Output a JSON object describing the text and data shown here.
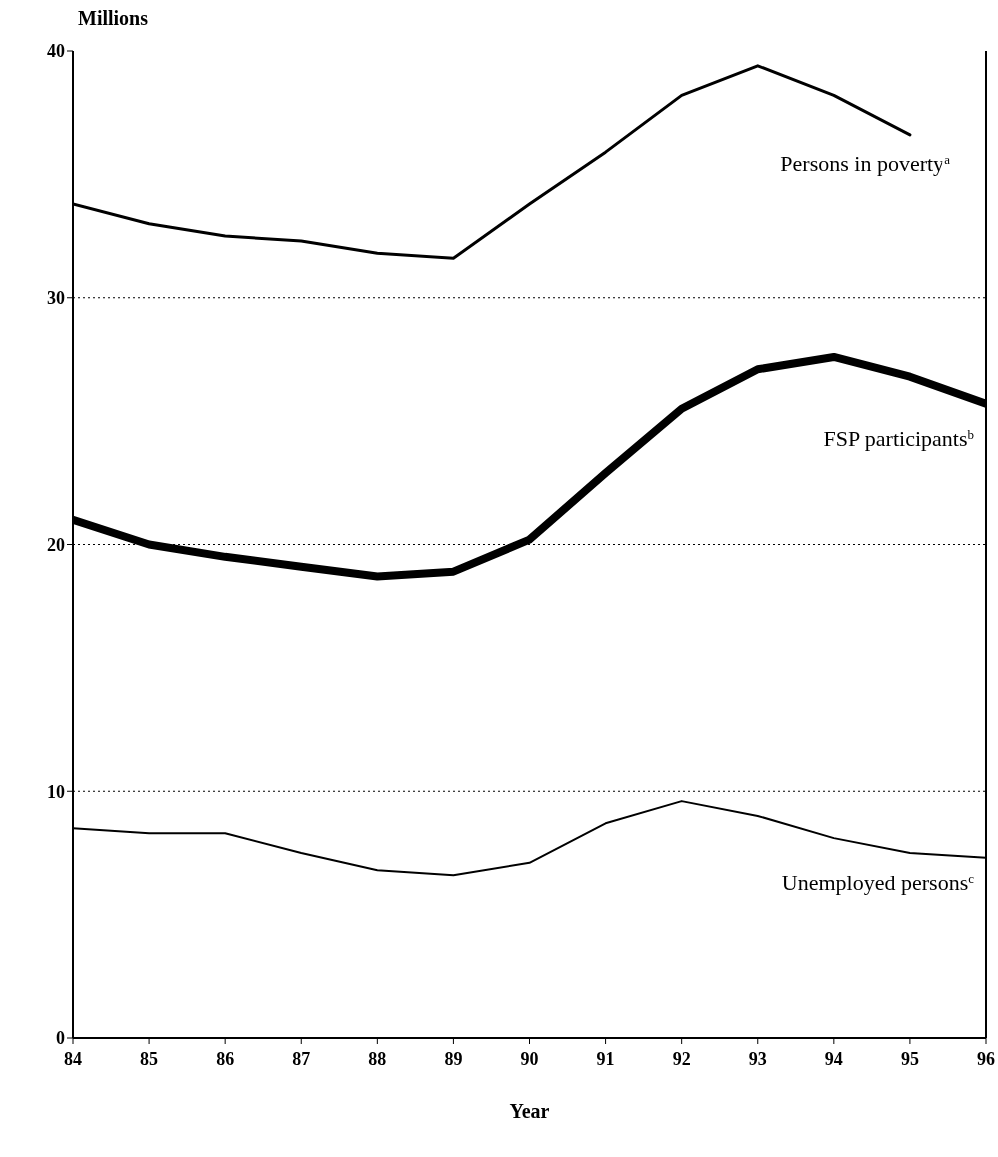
{
  "chart_data": {
    "type": "line",
    "ylabel": "Millions",
    "xlabel": "Year",
    "x": [
      84,
      85,
      86,
      87,
      88,
      89,
      90,
      91,
      92,
      93,
      94,
      95,
      96
    ],
    "xlim": [
      84,
      96
    ],
    "xticks": [
      84,
      85,
      86,
      87,
      88,
      89,
      90,
      91,
      92,
      93,
      94,
      95,
      96
    ],
    "ylim": [
      0,
      40
    ],
    "yticks": [
      0,
      10,
      20,
      30,
      40
    ],
    "grid": "y",
    "legend": false,
    "marker": "none",
    "line_style": "solid",
    "series": [
      {
        "name": "Persons in poverty$^{a}$",
        "color": "#000000",
        "values": [
          33.8,
          33.0,
          32.5,
          32.3,
          31.8,
          31.6,
          33.8,
          35.9,
          38.2,
          39.4,
          38.2,
          36.6,
          null
        ]
      },
      {
        "name": "FSP participants$^{b}$",
        "color": "#000000",
        "values": [
          21.0,
          20.0,
          19.5,
          19.1,
          18.7,
          18.9,
          20.2,
          22.9,
          25.5,
          27.1,
          27.6,
          26.8,
          25.7
        ]
      },
      {
        "name": "Unemployed persons$^{c}$",
        "color": "#000000",
        "values": [
          8.5,
          8.3,
          8.3,
          7.5,
          6.8,
          6.6,
          7.1,
          8.7,
          9.6,
          9.0,
          8.1,
          7.5,
          7.3
        ]
      }
    ]
  }
}
